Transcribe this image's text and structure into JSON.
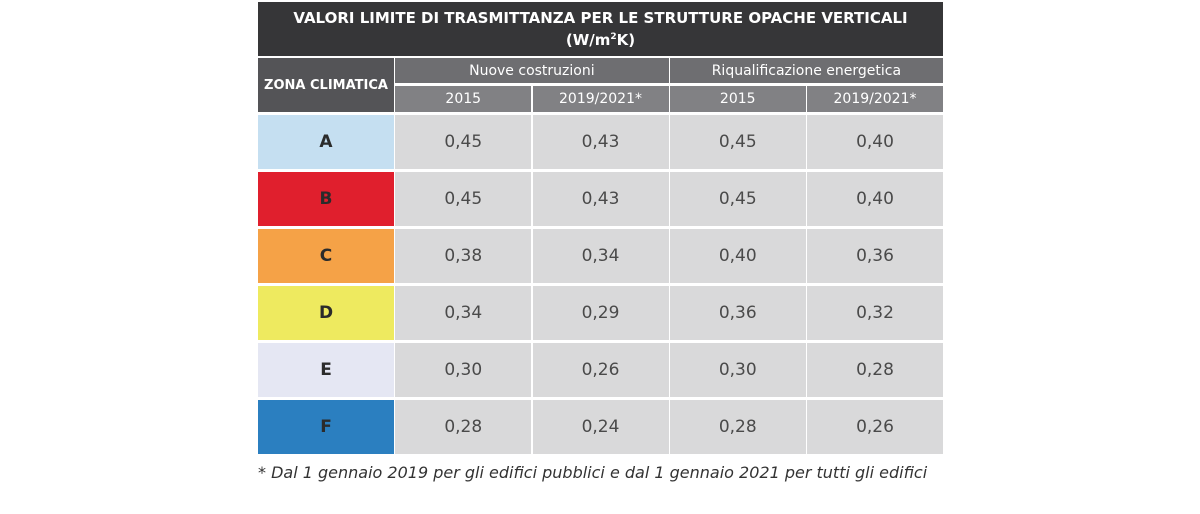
{
  "title_line1": "VALORI LIMITE DI TRASMITTANZA PER LE STRUTTURE OPACHE VERTICALI",
  "title_unit_pre": "(W/m",
  "title_unit_sup": "2",
  "title_unit_post": "K)",
  "header": {
    "zone_label": "ZONA CLIMATICA",
    "group_new": "Nuove costruzioni",
    "group_requal": "Riqualificazione energetica",
    "years": [
      "2015",
      "2019/2021*",
      "2015",
      "2019/2021*"
    ]
  },
  "rows": [
    {
      "zone": "A",
      "color": "#c5dff1",
      "values": [
        "0,45",
        "0,43",
        "0,45",
        "0,40"
      ]
    },
    {
      "zone": "B",
      "color": "#e01f2d",
      "values": [
        "0,45",
        "0,43",
        "0,45",
        "0,40"
      ]
    },
    {
      "zone": "C",
      "color": "#f5a247",
      "values": [
        "0,38",
        "0,34",
        "0,40",
        "0,36"
      ]
    },
    {
      "zone": "D",
      "color": "#eeea5f",
      "values": [
        "0,34",
        "0,29",
        "0,36",
        "0,32"
      ]
    },
    {
      "zone": "E",
      "color": "#e5e7f3",
      "values": [
        "0,30",
        "0,26",
        "0,30",
        "0,28"
      ]
    },
    {
      "zone": "F",
      "color": "#2b7fc0",
      "values": [
        "0,28",
        "0,24",
        "0,28",
        "0,26"
      ]
    }
  ],
  "footnote": "* Dal 1 gennaio 2019 per gli edifici pubblici e dal 1 gennaio 2021 per tutti gli edifici"
}
